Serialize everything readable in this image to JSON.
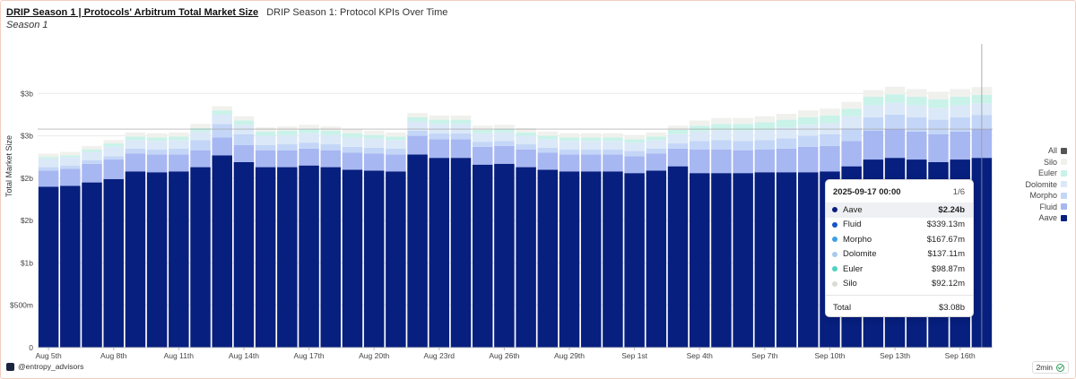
{
  "header": {
    "title": "DRIP Season 1 | Protocols' Arbitrum Total Market Size",
    "subtitle": "DRIP Season 1: Protocol KPIs Over Time",
    "season_label": "Season 1"
  },
  "footer": {
    "author": "@entropy_advisors",
    "refresh": "2min"
  },
  "colors": {
    "Aave": "#071f7e",
    "Fluid": "#a7b7f2",
    "Morpho": "#c4d6f7",
    "Dolomite": "#dbe8f7",
    "Euler": "#c9f2e9",
    "Silo": "#f0f1ed"
  },
  "chart_data": {
    "type": "bar",
    "stacked": true,
    "xlabel": "",
    "ylabel": "Total Market Size",
    "ylim": [
      0,
      3500000000
    ],
    "y_ticks": [
      0,
      500000000,
      1000000000,
      1500000000,
      2000000000,
      2500000000,
      3000000000
    ],
    "y_tick_labels": [
      "0",
      "$500m",
      "$1b",
      "$2b",
      "$2b",
      "$3b",
      "$3b"
    ],
    "x_tick_labels": [
      {
        "index": 0,
        "label": "Aug 5th"
      },
      {
        "index": 3,
        "label": "Aug 8th"
      },
      {
        "index": 6,
        "label": "Aug 11th"
      },
      {
        "index": 9,
        "label": "Aug 14th"
      },
      {
        "index": 12,
        "label": "Aug 17th"
      },
      {
        "index": 15,
        "label": "Aug 20th"
      },
      {
        "index": 18,
        "label": "Aug 23rd"
      },
      {
        "index": 21,
        "label": "Aug 26th"
      },
      {
        "index": 24,
        "label": "Aug 29th"
      },
      {
        "index": 27,
        "label": "Sep 1st"
      },
      {
        "index": 30,
        "label": "Sep 4th"
      },
      {
        "index": 33,
        "label": "Sep 7th"
      },
      {
        "index": 36,
        "label": "Sep 10th"
      },
      {
        "index": 39,
        "label": "Sep 13th"
      },
      {
        "index": 42,
        "label": "Sep 16th"
      }
    ],
    "grid": true,
    "legend_position": "right",
    "legend": [
      "All",
      "Silo",
      "Euler",
      "Dolomite",
      "Morpho",
      "Fluid",
      "Aave"
    ],
    "series": [
      {
        "name": "Aave",
        "values": [
          1900000000,
          1910000000,
          1950000000,
          1990000000,
          2080000000,
          2070000000,
          2080000000,
          2130000000,
          2270000000,
          2190000000,
          2130000000,
          2130000000,
          2150000000,
          2130000000,
          2100000000,
          2090000000,
          2080000000,
          2280000000,
          2240000000,
          2240000000,
          2160000000,
          2170000000,
          2130000000,
          2100000000,
          2080000000,
          2080000000,
          2080000000,
          2060000000,
          2090000000,
          2140000000,
          2060000000,
          2060000000,
          2060000000,
          2070000000,
          2070000000,
          2070000000,
          2080000000,
          2140000000,
          2220000000,
          2240000000,
          2220000000,
          2190000000,
          2220000000,
          2240000000
        ]
      },
      {
        "name": "Fluid",
        "values": [
          190000000,
          200000000,
          220000000,
          230000000,
          210000000,
          210000000,
          200000000,
          200000000,
          210000000,
          200000000,
          200000000,
          200000000,
          200000000,
          200000000,
          200000000,
          200000000,
          200000000,
          220000000,
          220000000,
          220000000,
          210000000,
          210000000,
          210000000,
          200000000,
          200000000,
          200000000,
          200000000,
          200000000,
          200000000,
          210000000,
          280000000,
          280000000,
          270000000,
          270000000,
          280000000,
          300000000,
          300000000,
          300000000,
          340000000,
          340000000,
          330000000,
          330000000,
          330000000,
          339130000
        ]
      },
      {
        "name": "Morpho",
        "values": [
          40000000,
          40000000,
          40000000,
          40000000,
          60000000,
          60000000,
          70000000,
          120000000,
          160000000,
          130000000,
          60000000,
          70000000,
          70000000,
          70000000,
          70000000,
          70000000,
          70000000,
          60000000,
          70000000,
          70000000,
          60000000,
          60000000,
          60000000,
          60000000,
          60000000,
          60000000,
          60000000,
          60000000,
          60000000,
          60000000,
          100000000,
          110000000,
          110000000,
          110000000,
          120000000,
          130000000,
          140000000,
          150000000,
          160000000,
          170000000,
          170000000,
          170000000,
          170000000,
          167670000
        ]
      },
      {
        "name": "Dolomite",
        "values": [
          100000000,
          100000000,
          100000000,
          110000000,
          100000000,
          100000000,
          100000000,
          100000000,
          110000000,
          110000000,
          110000000,
          110000000,
          110000000,
          110000000,
          110000000,
          110000000,
          100000000,
          110000000,
          110000000,
          110000000,
          100000000,
          100000000,
          100000000,
          100000000,
          100000000,
          100000000,
          100000000,
          100000000,
          100000000,
          110000000,
          110000000,
          120000000,
          120000000,
          120000000,
          130000000,
          130000000,
          130000000,
          140000000,
          140000000,
          140000000,
          140000000,
          140000000,
          140000000,
          137110000
        ]
      },
      {
        "name": "Euler",
        "values": [
          20000000,
          20000000,
          30000000,
          40000000,
          40000000,
          40000000,
          40000000,
          40000000,
          50000000,
          50000000,
          50000000,
          50000000,
          50000000,
          50000000,
          50000000,
          40000000,
          40000000,
          50000000,
          50000000,
          50000000,
          40000000,
          40000000,
          40000000,
          40000000,
          40000000,
          40000000,
          40000000,
          40000000,
          40000000,
          50000000,
          70000000,
          70000000,
          80000000,
          90000000,
          90000000,
          90000000,
          90000000,
          90000000,
          100000000,
          100000000,
          100000000,
          100000000,
          100000000,
          98870000
        ]
      },
      {
        "name": "Silo",
        "values": [
          40000000,
          40000000,
          40000000,
          40000000,
          50000000,
          50000000,
          50000000,
          50000000,
          50000000,
          50000000,
          50000000,
          50000000,
          50000000,
          50000000,
          50000000,
          50000000,
          50000000,
          50000000,
          50000000,
          50000000,
          50000000,
          50000000,
          50000000,
          50000000,
          50000000,
          50000000,
          50000000,
          50000000,
          50000000,
          50000000,
          60000000,
          70000000,
          70000000,
          70000000,
          70000000,
          80000000,
          80000000,
          80000000,
          80000000,
          90000000,
          90000000,
          90000000,
          90000000,
          92120000
        ]
      }
    ],
    "tooltip": {
      "date": "2025-09-17 00:00",
      "page": "1/6",
      "rows": [
        {
          "name": "Aave",
          "value": "$2.24b",
          "dot": "#071f7e",
          "highlight": true
        },
        {
          "name": "Fluid",
          "value": "$339.13m",
          "dot": "#1753c9"
        },
        {
          "name": "Morpho",
          "value": "$167.67m",
          "dot": "#3e9fe3"
        },
        {
          "name": "Dolomite",
          "value": "$137.11m",
          "dot": "#a9c9ee"
        },
        {
          "name": "Euler",
          "value": "$98.87m",
          "dot": "#4fd1c1"
        },
        {
          "name": "Silo",
          "value": "$92.12m",
          "dot": "#d9dad5"
        }
      ],
      "total_label": "Total",
      "total_value": "$3.08b"
    }
  }
}
